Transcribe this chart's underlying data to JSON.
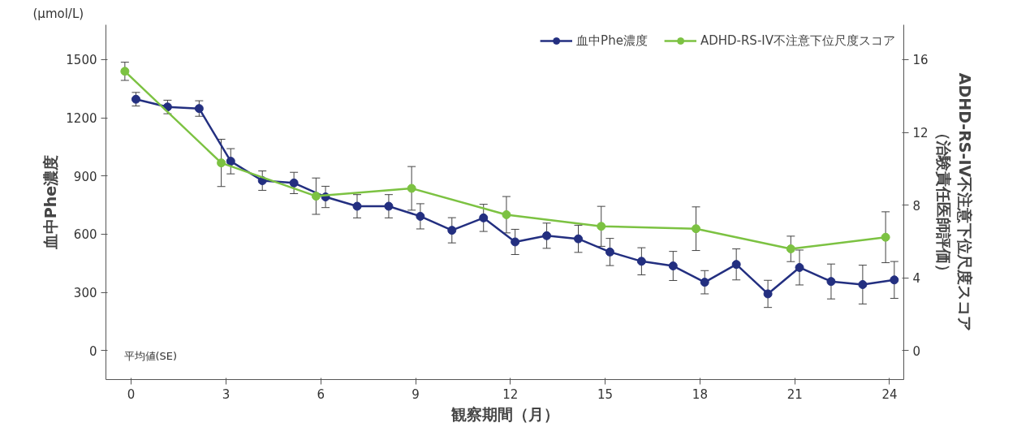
{
  "chart_data": {
    "type": "line",
    "xlabel": "観察期間（月）",
    "ylabel": "血中Phe濃度",
    "y2label": "ADHD-RS-IV不注意下位尺度スコア（治験責任医師評価）",
    "annotations": [
      "(μmol/L)",
      "平均値(SE)"
    ],
    "xlim": [
      -0.8,
      24.45
    ],
    "xticks": [
      0,
      3,
      6,
      9,
      12,
      15,
      18,
      21,
      24
    ],
    "ylim": [
      -150,
      1680
    ],
    "yticks": [
      0,
      300,
      600,
      900,
      1200,
      1500
    ],
    "y2lim": [
      -1.6,
      17.92
    ],
    "y2ticks": [
      0,
      4,
      8,
      12,
      16
    ],
    "grid": false,
    "legend": "top right",
    "marker": "circle",
    "line_style": "solid",
    "series": [
      {
        "name": "血中Phe濃度",
        "color": "#232f80",
        "x": [
          0.15,
          1.15,
          2.15,
          3.15,
          4.15,
          5.15,
          6.15,
          7.15,
          8.15,
          9.15,
          10.15,
          11.15,
          12.15,
          13.15,
          14.15,
          15.15,
          16.15,
          17.15,
          18.15,
          19.15,
          20.15,
          21.15,
          22.15,
          23.15,
          24.15
        ],
        "values": [
          1296,
          1256,
          1248,
          976,
          876,
          864,
          792,
          744,
          744,
          692,
          620,
          684,
          560,
          592,
          576,
          508,
          460,
          436,
          352,
          444,
          292,
          428,
          356,
          340,
          364
        ],
        "errors": [
          35,
          35,
          40,
          65,
          50,
          55,
          55,
          60,
          60,
          65,
          65,
          70,
          65,
          65,
          70,
          70,
          70,
          75,
          60,
          80,
          70,
          90,
          90,
          100,
          95
        ]
      },
      {
        "name": "ADHD-RS-IV不注意下位尺度スコア",
        "color": "#7cc242",
        "axis": "y2",
        "x": [
          -0.2,
          2.85,
          5.85,
          8.875,
          11.875,
          14.875,
          17.875,
          20.875,
          23.875
        ],
        "values": [
          15.36,
          10.32,
          8.49,
          8.92,
          7.47,
          6.83,
          6.7,
          5.59,
          6.23
        ],
        "errors": [
          0.5,
          1.3,
          1.0,
          1.2,
          1.0,
          1.1,
          1.2,
          0.7,
          1.4
        ]
      }
    ]
  }
}
